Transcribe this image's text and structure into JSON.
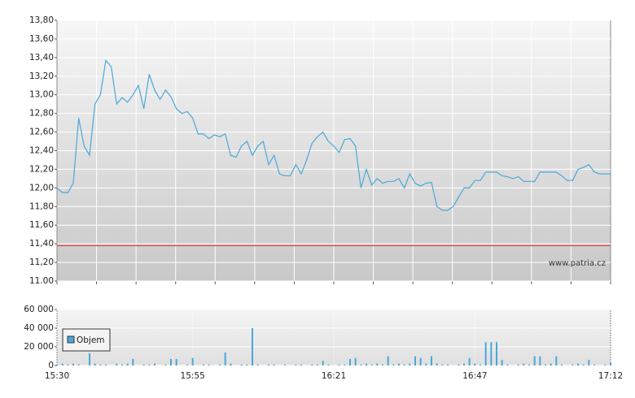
{
  "chart_data": [
    {
      "type": "line",
      "color": "#4aa8d8",
      "x": [
        "15:30",
        "15:31",
        "15:32",
        "15:33",
        "15:34",
        "15:35",
        "15:36",
        "15:37",
        "15:38",
        "15:39",
        "15:40",
        "15:41",
        "15:42",
        "15:43",
        "15:44",
        "15:45",
        "15:46",
        "15:47",
        "15:48",
        "15:49",
        "15:50",
        "15:51",
        "15:52",
        "15:53",
        "15:54",
        "15:55",
        "15:56",
        "15:57",
        "15:58",
        "15:59",
        "16:00",
        "16:01",
        "16:02",
        "16:03",
        "16:04",
        "16:05",
        "16:06",
        "16:07",
        "16:08",
        "16:09",
        "16:10",
        "16:11",
        "16:12",
        "16:13",
        "16:14",
        "16:15",
        "16:16",
        "16:17",
        "16:18",
        "16:19",
        "16:20",
        "16:21",
        "16:22",
        "16:23",
        "16:24",
        "16:25",
        "16:26",
        "16:27",
        "16:28",
        "16:29",
        "16:30",
        "16:31",
        "16:32",
        "16:33",
        "16:34",
        "16:35",
        "16:36",
        "16:37",
        "16:38",
        "16:39",
        "16:40",
        "16:41",
        "16:42",
        "16:43",
        "16:44",
        "16:45",
        "16:46",
        "16:47",
        "16:48",
        "16:49",
        "16:50",
        "16:51",
        "16:52",
        "16:53",
        "16:54",
        "16:55",
        "16:56",
        "16:57",
        "16:58",
        "16:59",
        "17:00",
        "17:01",
        "17:02",
        "17:03",
        "17:04",
        "17:05",
        "17:06",
        "17:07",
        "17:08",
        "17:09",
        "17:10",
        "17:11",
        "17:12"
      ],
      "values": [
        12.0,
        11.95,
        11.95,
        12.05,
        12.75,
        12.45,
        12.35,
        12.9,
        13.0,
        13.37,
        13.3,
        12.9,
        12.97,
        12.92,
        13.0,
        13.1,
        12.85,
        13.22,
        13.05,
        12.95,
        13.05,
        12.98,
        12.85,
        12.8,
        12.82,
        12.75,
        12.58,
        12.58,
        12.53,
        12.57,
        12.55,
        12.58,
        12.35,
        12.33,
        12.45,
        12.5,
        12.35,
        12.45,
        12.5,
        12.25,
        12.35,
        12.15,
        12.13,
        12.13,
        12.25,
        12.15,
        12.3,
        12.48,
        12.55,
        12.6,
        12.5,
        12.45,
        12.38,
        12.52,
        12.53,
        12.45,
        12.0,
        12.2,
        12.03,
        12.1,
        12.05,
        12.07,
        12.07,
        12.1,
        12.0,
        12.15,
        12.05,
        12.02,
        12.05,
        12.06,
        11.8,
        11.76,
        11.76,
        11.8,
        11.9,
        12.0,
        12.0,
        12.08,
        12.08,
        12.17,
        12.17,
        12.17,
        12.13,
        12.12,
        12.1,
        12.12,
        12.07,
        12.07,
        12.07,
        12.17,
        12.17,
        12.17,
        12.17,
        12.13,
        12.08,
        12.08,
        12.2,
        12.22,
        12.25,
        12.17,
        12.15,
        12.15,
        12.15
      ],
      "ylim": [
        11.0,
        13.8
      ],
      "yticks": [
        {
          "value": 11.0,
          "label": "11.00"
        },
        {
          "value": 11.2,
          "label": "11,20"
        },
        {
          "value": 11.4,
          "label": "11,40"
        },
        {
          "value": 11.6,
          "label": "11,60"
        },
        {
          "value": 11.8,
          "label": "11,80"
        },
        {
          "value": 12.0,
          "label": "12,00"
        },
        {
          "value": 12.2,
          "label": "12,20"
        },
        {
          "value": 12.4,
          "label": "12,40"
        },
        {
          "value": 12.6,
          "label": "12,60"
        },
        {
          "value": 12.8,
          "label": "12,80"
        },
        {
          "value": 13.0,
          "label": "13,00"
        },
        {
          "value": 13.2,
          "label": "13,20"
        },
        {
          "value": 13.4,
          "label": "13,40"
        },
        {
          "value": 13.6,
          "label": "13,60"
        },
        {
          "value": 13.8,
          "label": "13,80"
        }
      ],
      "reference_line": {
        "value": 11.38,
        "color": "#d9534f"
      },
      "watermark": "www.patria.cz",
      "grid": true
    },
    {
      "type": "bar",
      "x": [
        "15:30",
        "15:31",
        "15:32",
        "15:33",
        "15:34",
        "15:35",
        "15:36",
        "15:37",
        "15:38",
        "15:39",
        "15:40",
        "15:41",
        "15:42",
        "15:43",
        "15:44",
        "15:45",
        "15:46",
        "15:47",
        "15:48",
        "15:49",
        "15:50",
        "15:51",
        "15:52",
        "15:53",
        "15:54",
        "15:55",
        "15:56",
        "15:57",
        "15:58",
        "15:59",
        "16:00",
        "16:01",
        "16:02",
        "16:03",
        "16:04",
        "16:05",
        "16:06",
        "16:07",
        "16:08",
        "16:09",
        "16:10",
        "16:11",
        "16:12",
        "16:13",
        "16:14",
        "16:15",
        "16:16",
        "16:17",
        "16:18",
        "16:19",
        "16:20",
        "16:21",
        "16:22",
        "16:23",
        "16:24",
        "16:25",
        "16:26",
        "16:27",
        "16:28",
        "16:29",
        "16:30",
        "16:31",
        "16:32",
        "16:33",
        "16:34",
        "16:35",
        "16:36",
        "16:37",
        "16:38",
        "16:39",
        "16:40",
        "16:41",
        "16:42",
        "16:43",
        "16:44",
        "16:45",
        "16:46",
        "16:47",
        "16:48",
        "16:49",
        "16:50",
        "16:51",
        "16:52",
        "16:53",
        "16:54",
        "16:55",
        "16:56",
        "16:57",
        "16:58",
        "16:59",
        "17:00",
        "17:01",
        "17:02",
        "17:03",
        "17:04",
        "17:05",
        "17:06",
        "17:07",
        "17:08",
        "17:09",
        "17:10",
        "17:11",
        "17:12"
      ],
      "series": [
        {
          "name": "Objem",
          "color": "#4aa8d8",
          "values": [
            1000,
            2000,
            1000,
            2000,
            1000,
            0,
            13000,
            2000,
            1000,
            1000,
            0,
            2000,
            1000,
            2000,
            7000,
            0,
            1000,
            1000,
            2000,
            0,
            1000,
            7000,
            7000,
            0,
            1000,
            8000,
            0,
            1000,
            1000,
            0,
            1000,
            14000,
            2000,
            0,
            1000,
            1000,
            40000,
            1000,
            0,
            1000,
            1000,
            0,
            1000,
            0,
            1000,
            1000,
            0,
            1000,
            1000,
            5000,
            1000,
            0,
            1000,
            1000,
            7000,
            8000,
            1000,
            2000,
            1000,
            2000,
            1000,
            10000,
            1000,
            2000,
            1000,
            2000,
            10000,
            8000,
            2000,
            10000,
            2000,
            1000,
            1000,
            0,
            1000,
            2000,
            8000,
            2000,
            1000,
            25000,
            25000,
            25000,
            6000,
            1000,
            0,
            1000,
            2000,
            1000,
            10000,
            10000,
            1000,
            2000,
            10000,
            1000,
            0,
            1000,
            2000,
            1000,
            6000,
            1000,
            0,
            1000,
            3000
          ]
        }
      ],
      "ylim": [
        0,
        60000
      ],
      "yticks": [
        {
          "value": 0,
          "label": "0"
        },
        {
          "value": 20000,
          "label": "20 000"
        },
        {
          "value": 40000,
          "label": "40 000"
        },
        {
          "value": 60000,
          "label": "60 000"
        }
      ],
      "xticks": [
        "15:30",
        "15:55",
        "16:21",
        "16:47",
        "17:12"
      ],
      "grid": true
    }
  ]
}
